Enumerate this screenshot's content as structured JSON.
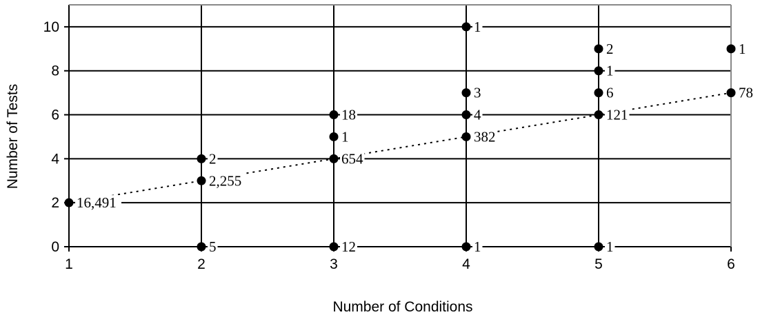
{
  "chart_data": {
    "type": "scatter",
    "title": "",
    "xlabel": "Number of Conditions",
    "ylabel": "Number of Tests",
    "xlim": [
      1,
      6
    ],
    "ylim": [
      0,
      11
    ],
    "x_ticks": [
      "1",
      "2",
      "3",
      "4",
      "5",
      "6"
    ],
    "y_ticks": [
      "0",
      "2",
      "4",
      "6",
      "8",
      "10"
    ],
    "grid": {
      "horizontal": true,
      "vertical": true
    },
    "points": [
      {
        "x": 1,
        "y": 2,
        "label": "16,491"
      },
      {
        "x": 2,
        "y": 0,
        "label": "5"
      },
      {
        "x": 2,
        "y": 3,
        "label": "2,255"
      },
      {
        "x": 2,
        "y": 4,
        "label": "2"
      },
      {
        "x": 3,
        "y": 0,
        "label": "12"
      },
      {
        "x": 3,
        "y": 4,
        "label": "654"
      },
      {
        "x": 3,
        "y": 5,
        "label": "1"
      },
      {
        "x": 3,
        "y": 6,
        "label": "18"
      },
      {
        "x": 4,
        "y": 0,
        "label": "1"
      },
      {
        "x": 4,
        "y": 5,
        "label": "382"
      },
      {
        "x": 4,
        "y": 6,
        "label": "4"
      },
      {
        "x": 4,
        "y": 7,
        "label": "3"
      },
      {
        "x": 4,
        "y": 10,
        "label": "1"
      },
      {
        "x": 5,
        "y": 0,
        "label": "1"
      },
      {
        "x": 5,
        "y": 6,
        "label": "121"
      },
      {
        "x": 5,
        "y": 7,
        "label": "6"
      },
      {
        "x": 5,
        "y": 8,
        "label": "1"
      },
      {
        "x": 5,
        "y": 9,
        "label": "2"
      },
      {
        "x": 6,
        "y": 7,
        "label": "78"
      },
      {
        "x": 6,
        "y": 9,
        "label": "1"
      }
    ],
    "trendline": {
      "style": "dotted",
      "x": [
        1,
        6
      ],
      "y": [
        2,
        7
      ]
    }
  }
}
